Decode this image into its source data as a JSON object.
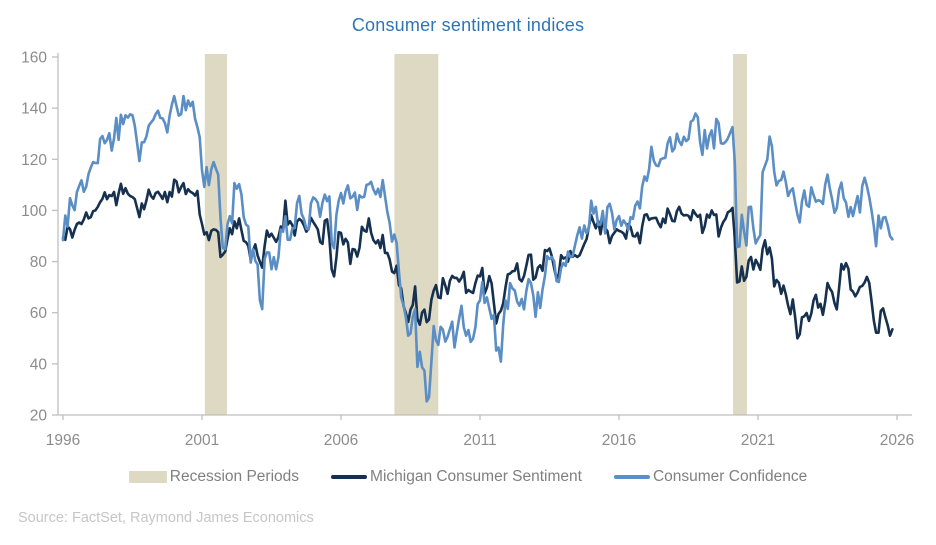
{
  "title": "Consumer sentiment indices",
  "source": "Source: FactSet, Raymond James Economics",
  "legend": [
    {
      "label": "Recession Periods",
      "swatch": "recession",
      "type": "band"
    },
    {
      "label": "Michigan Consumer Sentiment",
      "swatch": "michigan",
      "type": "line"
    },
    {
      "label": "Consumer Confidence",
      "swatch": "confidence",
      "type": "line"
    }
  ],
  "colors": {
    "title": "#2f74b5",
    "michigan": "#16304f",
    "confidence": "#5b8ec4",
    "recession": "#ded9c3",
    "axis": "#bfbfbf",
    "tick_label": "#8c8c8c",
    "legend_text": "#808080",
    "source_text": "#c6c6c6"
  },
  "chart_data": {
    "type": "line",
    "title": "Consumer sentiment indices",
    "xlabel": "",
    "ylabel": "",
    "xlim": [
      1996,
      2026
    ],
    "ylim": [
      20,
      160
    ],
    "x_ticks": [
      1996,
      2001,
      2006,
      2011,
      2016,
      2021,
      2026
    ],
    "y_ticks": [
      20,
      40,
      60,
      80,
      100,
      120,
      140,
      160
    ],
    "grid": false,
    "legend_position": "bottom",
    "x_start": 1996.0,
    "frequency": "monthly",
    "recession_bands": [
      [
        2001.1,
        2001.9
      ],
      [
        2007.92,
        2009.5
      ],
      [
        2020.1,
        2020.6
      ]
    ],
    "series": [
      {
        "name": "Michigan Consumer Sentiment",
        "color_key": "michigan",
        "values": [
          89.3,
          88.5,
          93.7,
          92.7,
          89.4,
          92.4,
          94.7,
          95.3,
          94.7,
          96.5,
          99.2,
          96.9,
          97.4,
          99.7,
          100.0,
          101.4,
          103.2,
          104.5,
          107.1,
          104.4,
          106.0,
          105.6,
          107.2,
          102.1,
          106.6,
          110.4,
          106.5,
          108.7,
          106.5,
          105.6,
          105.2,
          104.4,
          100.9,
          97.4,
          102.7,
          100.5,
          103.9,
          108.1,
          105.7,
          104.6,
          106.8,
          107.3,
          106.0,
          104.5,
          107.2,
          103.2,
          107.2,
          105.4,
          112.0,
          111.3,
          107.1,
          109.2,
          110.7,
          106.4,
          108.3,
          107.3,
          106.8,
          105.8,
          107.6,
          98.4,
          94.7,
          90.6,
          91.5,
          88.4,
          92.0,
          92.6,
          92.4,
          91.5,
          81.8,
          82.7,
          83.9,
          88.8,
          93.0,
          90.7,
          95.7,
          93.0,
          96.9,
          92.4,
          88.1,
          87.6,
          86.1,
          80.6,
          84.2,
          86.7,
          82.4,
          79.9,
          77.6,
          86.0,
          92.1,
          89.7,
          90.9,
          89.3,
          87.7,
          89.6,
          93.7,
          92.6,
          103.8,
          94.4,
          95.8,
          94.2,
          90.2,
          95.6,
          96.7,
          95.9,
          94.2,
          91.7,
          92.8,
          97.1,
          95.5,
          94.1,
          92.6,
          87.7,
          86.9,
          96.0,
          96.5,
          89.1,
          76.9,
          74.2,
          81.6,
          91.5,
          91.2,
          86.7,
          88.9,
          87.4,
          79.1,
          84.9,
          84.7,
          82.0,
          85.4,
          93.6,
          92.1,
          91.7,
          96.9,
          91.3,
          88.4,
          87.1,
          88.3,
          85.3,
          90.4,
          83.4,
          83.4,
          80.9,
          76.1,
          75.5,
          78.4,
          70.8,
          69.5,
          62.6,
          59.8,
          56.4,
          61.2,
          63.0,
          70.3,
          57.6,
          55.3,
          60.1,
          61.2,
          56.3,
          57.3,
          65.1,
          68.7,
          70.8,
          66.0,
          65.7,
          73.5,
          70.6,
          67.4,
          72.5,
          74.4,
          73.6,
          73.6,
          72.2,
          73.6,
          76.0,
          67.8,
          68.9,
          68.2,
          67.7,
          71.6,
          74.5,
          74.2,
          77.5,
          67.5,
          69.8,
          74.3,
          71.5,
          63.7,
          55.8,
          59.5,
          60.8,
          63.7,
          69.9,
          75.0,
          75.3,
          76.2,
          76.4,
          79.3,
          73.2,
          72.3,
          74.3,
          78.3,
          82.6,
          82.7,
          72.9,
          73.8,
          77.6,
          78.6,
          76.4,
          84.5,
          84.1,
          85.1,
          82.1,
          77.5,
          73.2,
          75.1,
          82.5,
          81.2,
          81.6,
          80.0,
          84.1,
          81.9,
          82.5,
          81.8,
          82.5,
          84.6,
          86.9,
          88.8,
          93.6,
          98.1,
          95.4,
          93.0,
          95.9,
          90.7,
          96.1,
          93.1,
          91.9,
          87.2,
          90.0,
          91.3,
          92.6,
          92.0,
          91.7,
          91.0,
          89.0,
          94.7,
          93.5,
          90.0,
          89.8,
          91.2,
          87.2,
          93.8,
          98.2,
          98.5,
          96.3,
          96.9,
          97.0,
          97.1,
          95.0,
          93.4,
          96.8,
          95.1,
          100.7,
          98.5,
          95.9,
          95.7,
          99.7,
          101.4,
          98.8,
          98.0,
          98.2,
          97.9,
          96.2,
          100.1,
          98.6,
          97.5,
          98.3,
          91.2,
          93.8,
          98.4,
          97.2,
          100.0,
          98.2,
          98.4,
          89.8,
          93.2,
          95.5,
          96.8,
          99.3,
          99.8,
          101.0,
          89.1,
          71.8,
          72.3,
          78.1,
          72.5,
          74.1,
          80.4,
          81.8,
          76.9,
          80.7,
          79.0,
          76.8,
          84.9,
          88.3,
          82.9,
          85.5,
          81.2,
          70.3,
          72.8,
          71.7,
          67.4,
          70.6,
          67.2,
          62.8,
          59.4,
          65.2,
          58.4,
          50.0,
          51.5,
          58.2,
          58.6,
          59.9,
          56.8,
          59.7,
          64.9,
          67.0,
          62.0,
          63.5,
          59.2,
          64.4,
          71.6,
          69.5,
          68.1,
          63.8,
          61.3,
          69.7,
          79.0,
          76.9,
          79.4,
          77.2,
          69.1,
          68.2,
          66.4,
          67.9,
          70.1,
          70.5,
          71.8,
          74.0,
          71.7,
          64.7,
          57.0,
          52.2,
          52.2,
          60.7,
          61.7,
          58.2,
          55.1,
          51.0,
          53.5
        ]
      },
      {
        "name": "Consumer Confidence",
        "color_key": "confidence",
        "values": [
          88.4,
          98.0,
          93.7,
          104.8,
          102.0,
          100.1,
          107.2,
          109.6,
          111.8,
          107.3,
          109.3,
          114.2,
          116.8,
          118.9,
          118.5,
          118.5,
          127.9,
          129.1,
          126.3,
          127.6,
          130.2,
          123.4,
          128.1,
          136.2,
          127.6,
          137.4,
          133.8,
          137.2,
          136.3,
          137.6,
          137.2,
          133.1,
          126.4,
          119.3,
          126.6,
          126.7,
          128.9,
          133.1,
          134.4,
          135.5,
          137.7,
          139.0,
          136.2,
          136.0,
          134.2,
          130.5,
          137.0,
          141.4,
          144.7,
          140.8,
          137.1,
          137.7,
          144.7,
          139.2,
          143.0,
          140.8,
          142.5,
          135.8,
          132.6,
          128.6,
          115.7,
          109.2,
          116.9,
          109.9,
          116.1,
          118.9,
          116.3,
          114.0,
          97.0,
          85.3,
          84.9,
          94.6,
          97.8,
          95.0,
          110.7,
          108.5,
          110.3,
          106.3,
          97.4,
          94.5,
          93.7,
          79.6,
          84.9,
          80.3,
          78.8,
          64.8,
          61.4,
          81.0,
          83.6,
          83.5,
          77.0,
          81.7,
          77.0,
          81.7,
          92.5,
          91.7,
          97.7,
          88.5,
          88.5,
          93.0,
          93.1,
          102.8,
          105.7,
          98.7,
          96.7,
          92.9,
          92.6,
          102.7,
          105.1,
          104.4,
          103.0,
          97.5,
          103.1,
          106.2,
          103.6,
          105.5,
          87.5,
          85.2,
          98.3,
          103.8,
          106.8,
          102.7,
          107.5,
          109.8,
          104.7,
          105.4,
          107.0,
          100.2,
          105.9,
          105.1,
          105.3,
          110.0,
          110.2,
          111.2,
          108.2,
          106.3,
          108.5,
          105.3,
          111.9,
          105.6,
          99.5,
          95.2,
          87.8,
          90.6,
          87.3,
          76.4,
          65.9,
          62.8,
          58.1,
          51.0,
          51.9,
          58.5,
          61.4,
          38.8,
          44.7,
          38.6,
          37.4,
          25.3,
          26.9,
          40.8,
          54.8,
          49.3,
          47.4,
          54.5,
          53.4,
          48.7,
          50.6,
          53.6,
          56.5,
          46.4,
          52.3,
          57.7,
          62.7,
          54.3,
          51.0,
          53.2,
          48.6,
          49.9,
          54.3,
          63.4,
          64.8,
          72.0,
          63.8,
          66.0,
          61.7,
          57.6,
          59.2,
          45.2,
          46.4,
          40.9,
          55.2,
          64.8,
          61.5,
          71.6,
          69.5,
          68.7,
          64.4,
          62.7,
          65.4,
          61.3,
          68.4,
          73.1,
          71.5,
          66.7,
          58.4,
          68.0,
          61.9,
          69.0,
          74.3,
          82.1,
          81.0,
          81.8,
          80.2,
          72.4,
          72.0,
          77.5,
          79.4,
          78.3,
          83.9,
          81.7,
          82.2,
          86.4,
          90.3,
          93.4,
          89.0,
          94.1,
          91.0,
          93.1,
          103.8,
          98.8,
          101.4,
          94.3,
          94.6,
          99.8,
          91.0,
          101.3,
          102.6,
          99.1,
          92.6,
          96.3,
          97.8,
          94.0,
          96.1,
          94.7,
          92.4,
          97.4,
          96.7,
          101.8,
          103.5,
          100.8,
          109.4,
          113.3,
          111.6,
          116.1,
          124.9,
          119.4,
          117.6,
          117.3,
          120.0,
          120.4,
          120.6,
          126.2,
          128.6,
          123.1,
          124.3,
          130.0,
          127.0,
          125.6,
          128.8,
          127.1,
          127.9,
          134.7,
          135.3,
          137.9,
          136.4,
          126.6,
          121.7,
          131.4,
          124.2,
          129.2,
          131.3,
          124.3,
          135.8,
          134.2,
          126.3,
          126.1,
          126.8,
          128.2,
          130.4,
          132.6,
          118.8,
          85.7,
          85.9,
          98.3,
          91.7,
          86.3,
          101.3,
          101.4,
          92.9,
          87.1,
          88.9,
          90.4,
          114.9,
          117.5,
          120.0,
          128.9,
          125.1,
          115.2,
          109.8,
          111.6,
          111.9,
          115.2,
          111.1,
          105.7,
          107.6,
          108.6,
          103.2,
          98.4,
          95.3,
          103.6,
          107.8,
          102.2,
          101.4,
          109.0,
          106.0,
          103.4,
          104.0,
          103.7,
          102.5,
          110.1,
          114.0,
          108.7,
          104.3,
          99.1,
          101.0,
          108.0,
          110.9,
          104.8,
          103.1,
          97.5,
          101.3,
          97.8,
          101.9,
          105.6,
          99.2,
          109.6,
          112.8,
          109.5,
          105.3,
          100.1,
          93.9,
          86.0,
          98.0,
          93.0,
          97.2,
          97.4,
          94.2,
          90.0,
          88.7
        ]
      }
    ]
  }
}
